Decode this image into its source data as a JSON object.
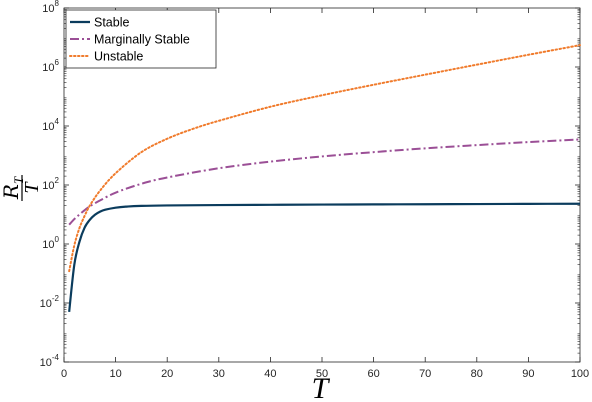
{
  "chart_data": {
    "type": "line",
    "title": "",
    "xlabel": "T",
    "ylabel": "R_T / T",
    "ylabel_parts": {
      "numerator": "R",
      "subscript": "T",
      "denominator": "T"
    },
    "xlim": [
      0,
      100
    ],
    "ylim_log10": [
      -4,
      8
    ],
    "yscale": "log",
    "grid": false,
    "legend_position": "top-left",
    "x_ticks": [
      0,
      10,
      20,
      30,
      40,
      50,
      60,
      70,
      80,
      90,
      100
    ],
    "y_ticks": [
      {
        "base": "10",
        "exp": "-4"
      },
      {
        "base": "10",
        "exp": "-2"
      },
      {
        "base": "10",
        "exp": "0"
      },
      {
        "base": "10",
        "exp": "2"
      },
      {
        "base": "10",
        "exp": "4"
      },
      {
        "base": "10",
        "exp": "6"
      },
      {
        "base": "10",
        "exp": "8"
      }
    ],
    "series": [
      {
        "name": "Stable",
        "color": "#0b3c5d",
        "style": "solid",
        "x": [
          1,
          2,
          3,
          4,
          5,
          6,
          7,
          8,
          10,
          12,
          15,
          20,
          30,
          40,
          50,
          60,
          70,
          80,
          90,
          100
        ],
        "y": [
          0.005,
          0.2,
          1.2,
          3.6,
          6.6,
          9.8,
          12.5,
          14.5,
          17,
          18.5,
          19.6,
          20.3,
          20.9,
          21.3,
          21.7,
          22.0,
          22.3,
          22.6,
          22.9,
          23.2
        ]
      },
      {
        "name": "Marginally Stable",
        "color": "#9b4f96",
        "style": "dashdot",
        "x": [
          1,
          2,
          3,
          4,
          5,
          7,
          10,
          15,
          20,
          30,
          40,
          50,
          60,
          70,
          80,
          90,
          100
        ],
        "y": [
          4.5,
          7,
          10,
          14,
          19,
          30,
          55,
          110,
          180,
          370,
          620,
          930,
          1300,
          1750,
          2250,
          2850,
          3500
        ]
      },
      {
        "name": "Unstable",
        "color": "#f07b2c",
        "style": "dotted",
        "x": [
          1,
          2,
          3,
          4,
          5,
          7,
          10,
          15,
          20,
          25,
          30,
          40,
          50,
          60,
          70,
          80,
          90,
          100
        ],
        "y": [
          0.12,
          0.9,
          3.5,
          9,
          20,
          65,
          250,
          1300,
          3700,
          8000,
          15000,
          45000,
          110000,
          250000,
          550000,
          1200000,
          2600000,
          5500000
        ]
      }
    ]
  }
}
